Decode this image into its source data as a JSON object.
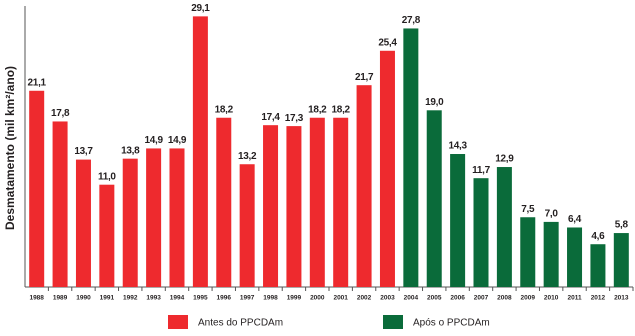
{
  "chart_data": {
    "type": "bar",
    "ylabel": "Desmatamento (mil km²/ano)",
    "categories": [
      "1988",
      "1989",
      "1990",
      "1991",
      "1992",
      "1993",
      "1994",
      "1995",
      "1996",
      "1997",
      "1998",
      "1999",
      "2000",
      "2001",
      "2002",
      "2003",
      "2004",
      "2005",
      "2006",
      "2007",
      "2008",
      "2009",
      "2010",
      "2011",
      "2012",
      "2013"
    ],
    "series": [
      {
        "name": "Antes do PPCDAm",
        "color": "#ee2a2e",
        "values": [
          21.1,
          17.8,
          13.7,
          11.0,
          13.8,
          14.9,
          14.9,
          29.1,
          18.2,
          13.2,
          17.4,
          17.3,
          18.2,
          18.2,
          21.7,
          25.4,
          null,
          null,
          null,
          null,
          null,
          null,
          null,
          null,
          null,
          null
        ],
        "value_labels": [
          "21,1",
          "17,8",
          "13,7",
          "11,0",
          "13,8",
          "14,9",
          "14,9",
          "29,1",
          "18,2",
          "13,2",
          "17,4",
          "17,3",
          "18,2",
          "18,2",
          "21,7",
          "25,4",
          null,
          null,
          null,
          null,
          null,
          null,
          null,
          null,
          null,
          null
        ]
      },
      {
        "name": "Após o PPCDAm",
        "color": "#0a6b3a",
        "values": [
          null,
          null,
          null,
          null,
          null,
          null,
          null,
          null,
          null,
          null,
          null,
          null,
          null,
          null,
          null,
          null,
          27.8,
          19.0,
          14.3,
          11.7,
          12.9,
          7.5,
          7.0,
          6.4,
          4.6,
          5.8
        ],
        "value_labels": [
          null,
          null,
          null,
          null,
          null,
          null,
          null,
          null,
          null,
          null,
          null,
          null,
          null,
          null,
          null,
          null,
          "27,8",
          "19,0",
          "14,3",
          "11,7",
          "12,9",
          "7,5",
          "7,0",
          "6,4",
          "4,6",
          "5,8"
        ]
      }
    ],
    "ylim": [
      0,
      30
    ]
  }
}
